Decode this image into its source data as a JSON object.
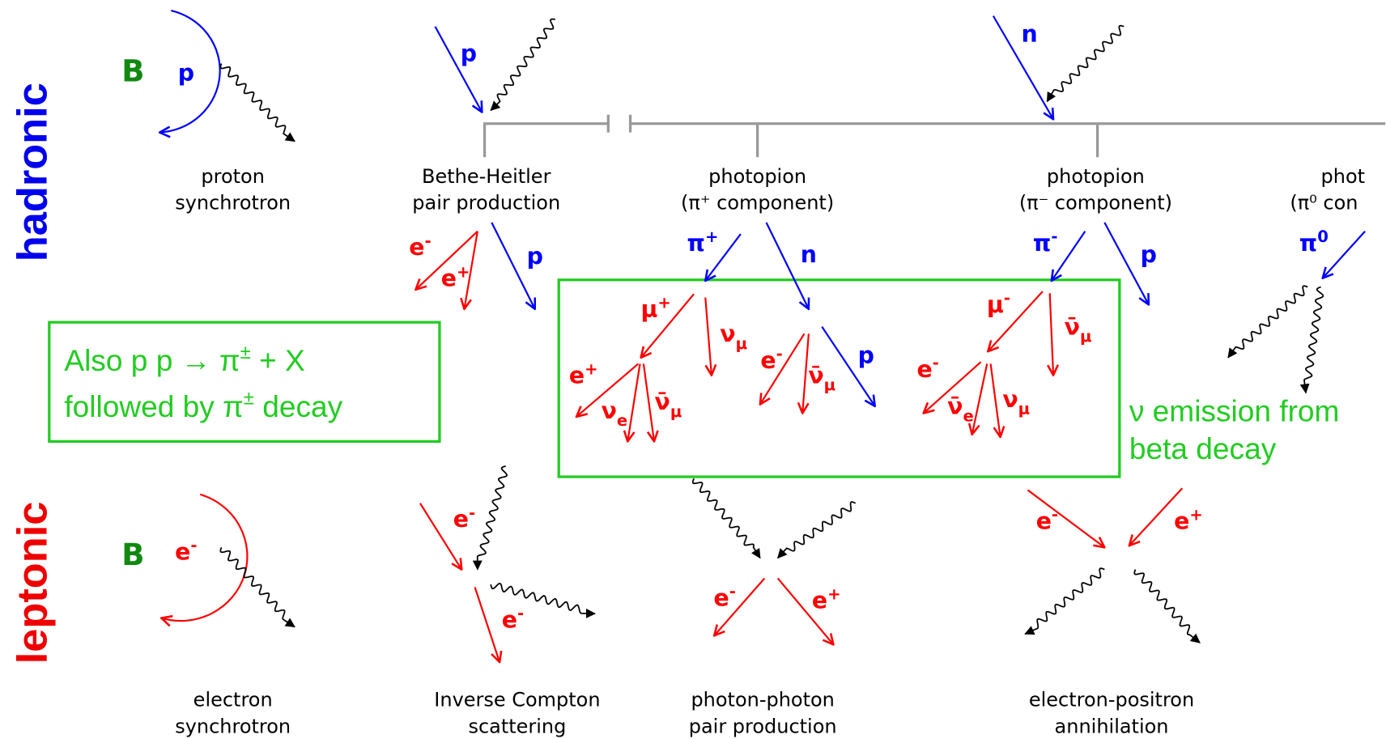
{
  "rows": [
    "hadronic",
    "leptonic"
  ],
  "magnetic_field": [
    "B",
    "B"
  ],
  "processes": [
    [
      "proton",
      "synchrotron"
    ],
    [
      "Bethe-Heitler",
      "pair production"
    ],
    [
      "photopion",
      "(π⁺ component)"
    ],
    [
      "photopion",
      "(π⁻ component)"
    ],
    [
      "phot",
      "(π⁰ con"
    ],
    [
      "electron",
      "synchrotron"
    ],
    [
      "Inverse Compton",
      "scattering"
    ],
    [
      "photon-photon",
      "pair production"
    ],
    [
      "electron-positron",
      "annihilation"
    ]
  ],
  "particles": [
    {
      "base": "p"
    },
    {
      "base": "p"
    },
    {
      "base": "n"
    },
    {
      "base": "e",
      "sup": "-"
    },
    {
      "base": "e",
      "sup": "+"
    },
    {
      "base": "p"
    },
    {
      "base": "π",
      "sup": "+"
    },
    {
      "base": "n"
    },
    {
      "base": "μ",
      "sup": "+"
    },
    {
      "base": "ν",
      "sub": "μ"
    },
    {
      "base": "e",
      "sup": "+"
    },
    {
      "base": "ν",
      "sub": "e"
    },
    {
      "base": "ν̄",
      "sub": "μ"
    },
    {
      "base": "e",
      "sup": "-"
    },
    {
      "base": "ν̄",
      "sub": "μ"
    },
    {
      "base": "p"
    },
    {
      "base": "π",
      "sup": "-"
    },
    {
      "base": "p"
    },
    {
      "base": "μ",
      "sup": "-"
    },
    {
      "base": "ν̄",
      "sub": "μ"
    },
    {
      "base": "e",
      "sup": "-"
    },
    {
      "base": "ν̄",
      "sub": "e"
    },
    {
      "base": "ν",
      "sub": "μ"
    },
    {
      "base": "π",
      "sup": "0"
    },
    {
      "base": "e",
      "sup": "-"
    },
    {
      "base": "e",
      "sup": "-"
    },
    {
      "base": "e",
      "sup": "-"
    },
    {
      "base": "e",
      "sup": "-"
    },
    {
      "base": "e",
      "sup": "+"
    },
    {
      "base": "e",
      "sup": "-"
    },
    {
      "base": "e",
      "sup": "+"
    }
  ],
  "notes": {
    "hadronic_pp": [
      [
        "Also p p → π",
        "±",
        " + X"
      ],
      [
        "followed by   π",
        "±",
        " decay"
      ]
    ],
    "beta": [
      "ν emission from",
      "beta decay"
    ]
  }
}
